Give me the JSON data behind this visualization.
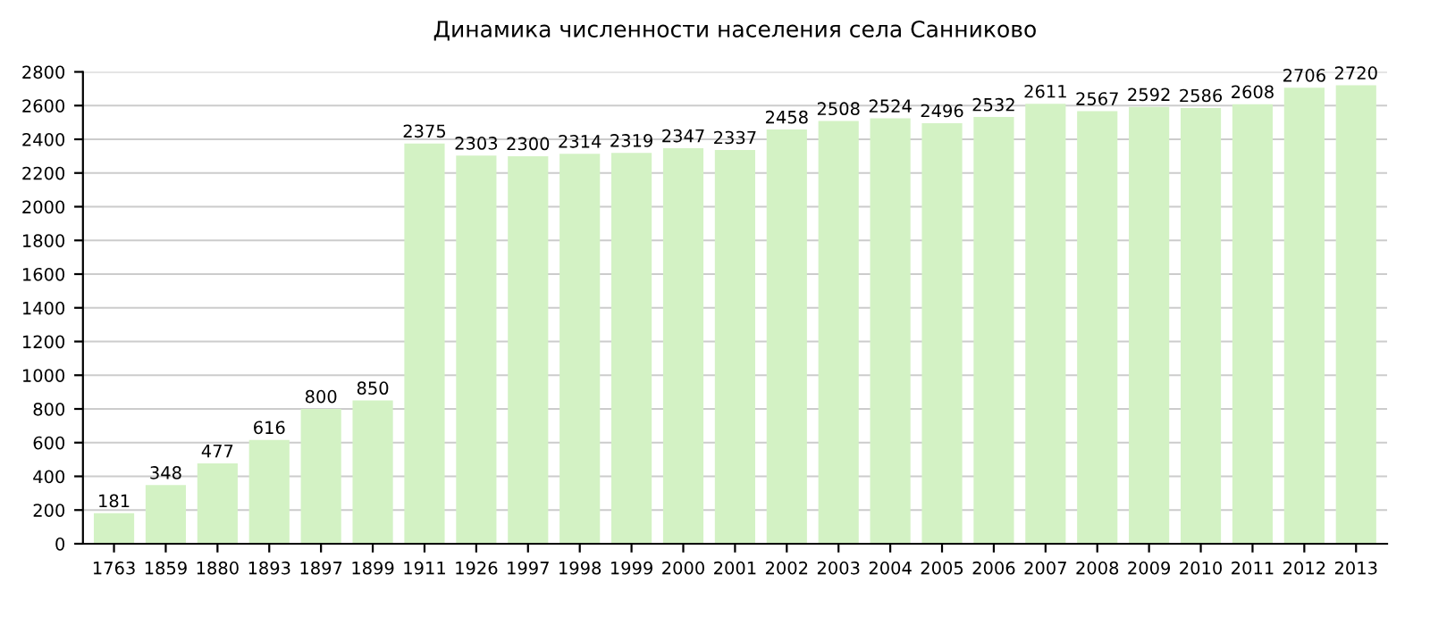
{
  "chart_data": {
    "type": "bar",
    "title": "Динамика численности населения села Санниково",
    "categories": [
      "1763",
      "1859",
      "1880",
      "1893",
      "1897",
      "1899",
      "1911",
      "1926",
      "1997",
      "1998",
      "1999",
      "2000",
      "2001",
      "2002",
      "2003",
      "2004",
      "2005",
      "2006",
      "2007",
      "2008",
      "2009",
      "2010",
      "2011",
      "2012",
      "2013"
    ],
    "values": [
      181,
      348,
      477,
      616,
      800,
      850,
      2375,
      2303,
      2300,
      2314,
      2319,
      2347,
      2337,
      2458,
      2508,
      2524,
      2496,
      2532,
      2611,
      2567,
      2592,
      2586,
      2608,
      2706,
      2720
    ],
    "color": "#d3f2c4",
    "ylim": [
      0,
      2800
    ],
    "yticks": [
      0,
      200,
      400,
      600,
      800,
      1000,
      1200,
      1400,
      1600,
      1800,
      2000,
      2200,
      2400,
      2600,
      2800
    ],
    "grid": "y",
    "data_labels": true
  }
}
